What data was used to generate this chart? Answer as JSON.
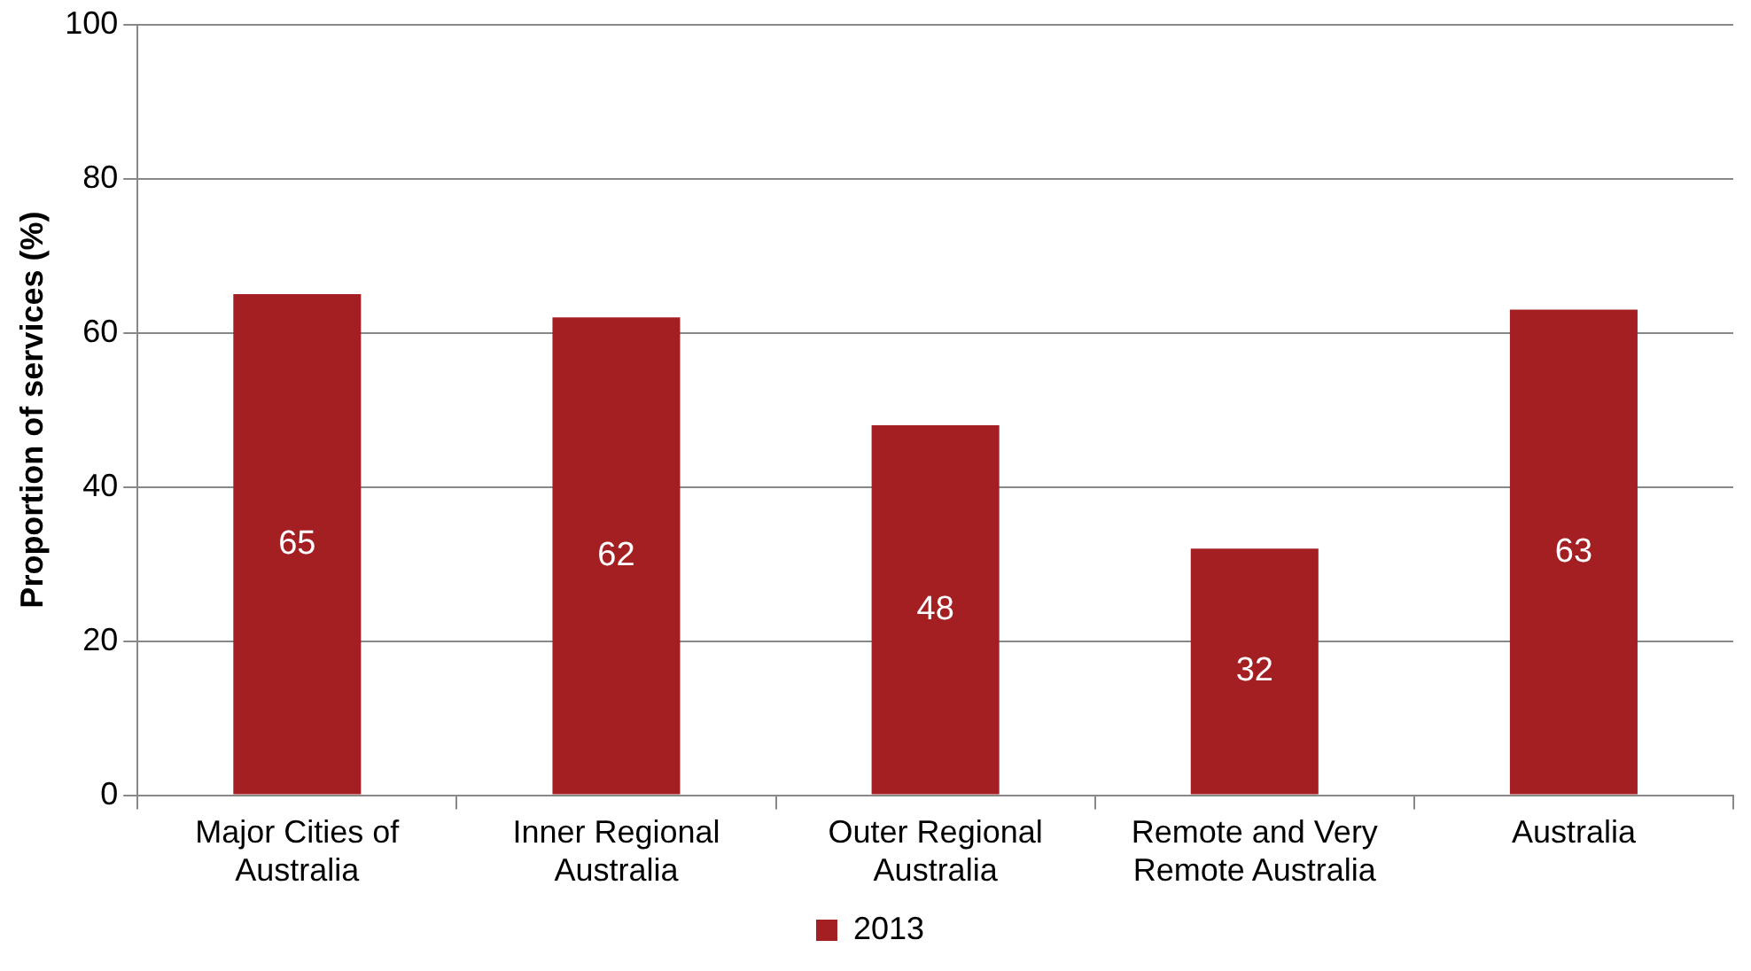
{
  "chart_data": {
    "type": "bar",
    "ylabel": "Proportion of services (%)",
    "categories": [
      "Major Cities of Australia",
      "Inner Regional Australia",
      "Outer Regional Australia",
      "Remote and Very Remote Australia",
      "Australia"
    ],
    "series": [
      {
        "name": "2013",
        "color": "#a31f22",
        "values": [
          65,
          62,
          48,
          32,
          63
        ]
      }
    ],
    "ylim": [
      0,
      100
    ],
    "yticks": [
      0,
      20,
      40,
      60,
      80,
      100
    ],
    "grid": "y",
    "legend": "bottom",
    "data_labels": true
  }
}
